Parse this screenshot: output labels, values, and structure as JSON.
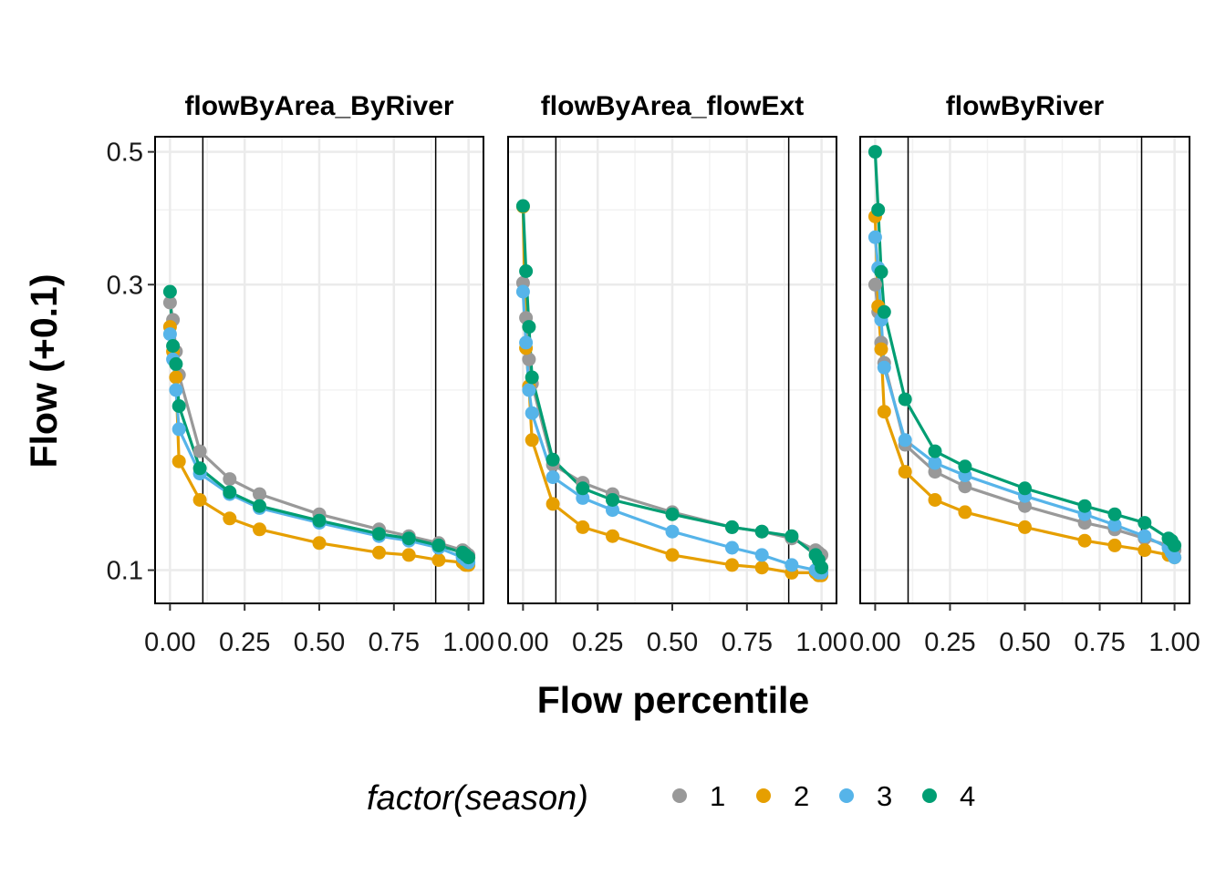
{
  "chart_data": {
    "type": "line",
    "xlabel": "Flow percentile",
    "ylabel": "Flow (+0.1)",
    "y_scale": "log",
    "xlim": [
      -0.05,
      1.05
    ],
    "ylim": [
      0.088,
      0.53
    ],
    "x_ticks": [
      0,
      0.25,
      0.5,
      0.75,
      1.0
    ],
    "x_tick_labels": [
      "0.00",
      "0.25",
      "0.50",
      "0.75",
      "1.00"
    ],
    "y_ticks": [
      0.1,
      0.3,
      0.5
    ],
    "y_tick_labels": [
      "0.1",
      "0.3",
      "0.5"
    ],
    "vlines": [
      0.11,
      0.89
    ],
    "grid": true,
    "legend": {
      "title": "factor(season)",
      "position": "bottom",
      "entries": [
        {
          "label": "1",
          "color": "#999999"
        },
        {
          "label": "2",
          "color": "#E69F00"
        },
        {
          "label": "3",
          "color": "#56B4E9"
        },
        {
          "label": "4",
          "color": "#009E73"
        }
      ]
    },
    "facets": [
      {
        "title": "flowByArea_ByRiver",
        "series": [
          {
            "name": "1",
            "x": [
              0,
              0.01,
              0.02,
              0.03,
              0.1,
              0.2,
              0.3,
              0.5,
              0.7,
              0.8,
              0.9,
              0.98,
              0.99,
              1.0
            ],
            "y": [
              0.28,
              0.262,
              0.232,
              0.212,
              0.158,
              0.142,
              0.134,
              0.124,
              0.117,
              0.114,
              0.111,
              0.108,
              0.107,
              0.106
            ]
          },
          {
            "name": "2",
            "x": [
              0,
              0.01,
              0.02,
              0.03,
              0.1,
              0.2,
              0.3,
              0.5,
              0.7,
              0.8,
              0.9,
              0.98,
              0.99,
              1.0
            ],
            "y": [
              0.255,
              0.232,
              0.21,
              0.152,
              0.131,
              0.122,
              0.117,
              0.111,
              0.107,
              0.106,
              0.104,
              0.103,
              0.102,
              0.102
            ]
          },
          {
            "name": "3",
            "x": [
              0,
              0.01,
              0.02,
              0.03,
              0.1,
              0.2,
              0.3,
              0.5,
              0.7,
              0.8,
              0.9,
              0.98,
              0.99,
              1.0
            ],
            "y": [
              0.248,
              0.225,
              0.2,
              0.172,
              0.145,
              0.134,
              0.127,
              0.12,
              0.114,
              0.112,
              0.109,
              0.105,
              0.104,
              0.103
            ]
          },
          {
            "name": "4",
            "x": [
              0,
              0.01,
              0.02,
              0.03,
              0.1,
              0.2,
              0.3,
              0.5,
              0.7,
              0.8,
              0.9,
              0.98,
              0.99,
              1.0
            ],
            "y": [
              0.292,
              0.237,
              0.221,
              0.188,
              0.148,
              0.135,
              0.128,
              0.121,
              0.115,
              0.113,
              0.11,
              0.107,
              0.106,
              0.105
            ]
          }
        ]
      },
      {
        "title": "flowByArea_flowExt",
        "series": [
          {
            "name": "1",
            "x": [
              0,
              0.01,
              0.02,
              0.03,
              0.1,
              0.2,
              0.3,
              0.5,
              0.7,
              0.8,
              0.9,
              0.98,
              0.99,
              1.0
            ],
            "y": [
              0.302,
              0.264,
              0.225,
              0.205,
              0.15,
              0.14,
              0.134,
              0.125,
              0.118,
              0.116,
              0.113,
              0.108,
              0.107,
              0.106
            ]
          },
          {
            "name": "2",
            "x": [
              0,
              0.01,
              0.02,
              0.03,
              0.1,
              0.2,
              0.3,
              0.5,
              0.7,
              0.8,
              0.9,
              0.98,
              0.99,
              1.0
            ],
            "y": [
              0.405,
              0.235,
              0.203,
              0.165,
              0.129,
              0.118,
              0.114,
              0.106,
              0.102,
              0.101,
              0.099,
              0.099,
              0.098,
              0.098
            ]
          },
          {
            "name": "3",
            "x": [
              0,
              0.01,
              0.02,
              0.03,
              0.1,
              0.2,
              0.3,
              0.5,
              0.7,
              0.8,
              0.9,
              0.98,
              0.99,
              1.0
            ],
            "y": [
              0.292,
              0.24,
              0.2,
              0.183,
              0.143,
              0.132,
              0.126,
              0.116,
              0.109,
              0.106,
              0.102,
              0.1,
              0.099,
              0.099
            ]
          },
          {
            "name": "4",
            "x": [
              0,
              0.01,
              0.02,
              0.03,
              0.1,
              0.2,
              0.3,
              0.5,
              0.7,
              0.8,
              0.9,
              0.98,
              0.99,
              1.0
            ],
            "y": [
              0.406,
              0.316,
              0.255,
              0.21,
              0.153,
              0.137,
              0.131,
              0.124,
              0.118,
              0.116,
              0.114,
              0.106,
              0.104,
              0.101
            ]
          }
        ]
      },
      {
        "title": "flowByRiver",
        "series": [
          {
            "name": "1",
            "x": [
              0,
              0.01,
              0.02,
              0.03,
              0.1,
              0.2,
              0.3,
              0.5,
              0.7,
              0.8,
              0.9,
              0.98,
              0.99,
              1.0
            ],
            "y": [
              0.3,
              0.27,
              0.24,
              0.222,
              0.162,
              0.146,
              0.138,
              0.128,
              0.12,
              0.117,
              0.113,
              0.11,
              0.109,
              0.108
            ]
          },
          {
            "name": "2",
            "x": [
              0,
              0.01,
              0.02,
              0.03,
              0.1,
              0.2,
              0.3,
              0.5,
              0.7,
              0.8,
              0.9,
              0.98,
              0.99,
              1.0
            ],
            "y": [
              0.39,
              0.276,
              0.234,
              0.184,
              0.146,
              0.131,
              0.125,
              0.118,
              0.112,
              0.11,
              0.108,
              0.106,
              0.106,
              0.105
            ]
          },
          {
            "name": "3",
            "x": [
              0,
              0.01,
              0.02,
              0.03,
              0.1,
              0.2,
              0.3,
              0.5,
              0.7,
              0.8,
              0.9,
              0.98,
              0.99,
              1.0
            ],
            "y": [
              0.36,
              0.32,
              0.262,
              0.218,
              0.165,
              0.151,
              0.144,
              0.133,
              0.124,
              0.119,
              0.114,
              0.109,
              0.107,
              0.105
            ]
          },
          {
            "name": "4",
            "x": [
              0,
              0.01,
              0.02,
              0.03,
              0.1,
              0.2,
              0.3,
              0.5,
              0.7,
              0.8,
              0.9,
              0.98,
              0.99,
              1.0
            ],
            "y": [
              0.5,
              0.4,
              0.315,
              0.27,
              0.193,
              0.158,
              0.149,
              0.137,
              0.128,
              0.124,
              0.12,
              0.113,
              0.112,
              0.11
            ]
          }
        ]
      }
    ]
  }
}
